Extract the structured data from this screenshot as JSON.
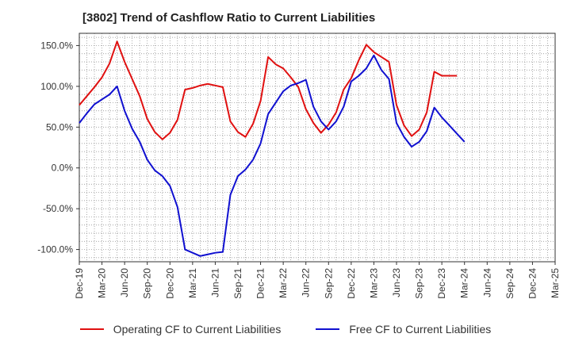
{
  "chart_data": {
    "type": "line",
    "title": "[3802]  Trend of Cashflow Ratio to Current Liabilities",
    "xlabel": "",
    "ylabel": "",
    "ylim": [
      -115,
      165
    ],
    "yticks": [
      150,
      100,
      50,
      0,
      -50,
      -100
    ],
    "ytick_labels": [
      "150.0%",
      "100.0%",
      "50.0%",
      "0.0%",
      "-50.0%",
      "-100.0%"
    ],
    "x_tick_labels": [
      "Dec-19",
      "Mar-20",
      "Jun-20",
      "Sep-20",
      "Dec-20",
      "Mar-21",
      "Jun-21",
      "Sep-21",
      "Dec-21",
      "Mar-22",
      "Jun-22",
      "Sep-22",
      "Dec-22",
      "Mar-23",
      "Jun-23",
      "Sep-23",
      "Dec-23",
      "Mar-24",
      "Jun-24",
      "Sep-24",
      "Dec-24",
      "Mar-25"
    ],
    "grid": true,
    "legend_position": "bottom",
    "series": [
      {
        "name": "Operating CF to Current Liabilities",
        "color": "#e01010",
        "points": [
          [
            0,
            77
          ],
          [
            1,
            88
          ],
          [
            2,
            99
          ],
          [
            3,
            111
          ],
          [
            4,
            128
          ],
          [
            5,
            155
          ],
          [
            6,
            130
          ],
          [
            7,
            109
          ],
          [
            8,
            88
          ],
          [
            9,
            60
          ],
          [
            10,
            44
          ],
          [
            11,
            35
          ],
          [
            12,
            43
          ],
          [
            13,
            59
          ],
          [
            14,
            96
          ],
          [
            15,
            98
          ],
          [
            16,
            101
          ],
          [
            17,
            103
          ],
          [
            18,
            101
          ],
          [
            19,
            99
          ],
          [
            20,
            57
          ],
          [
            21,
            44
          ],
          [
            22,
            38
          ],
          [
            23,
            54
          ],
          [
            24,
            82
          ],
          [
            25,
            136
          ],
          [
            26,
            127
          ],
          [
            27,
            122
          ],
          [
            28,
            111
          ],
          [
            29,
            99
          ],
          [
            30,
            72
          ],
          [
            31,
            55
          ],
          [
            32,
            43
          ],
          [
            33,
            53
          ],
          [
            34,
            68
          ],
          [
            35,
            96
          ],
          [
            36,
            110
          ],
          [
            37,
            132
          ],
          [
            38,
            151
          ],
          [
            39,
            142
          ],
          [
            40,
            136
          ],
          [
            41,
            130
          ],
          [
            42,
            77
          ],
          [
            43,
            52
          ],
          [
            44,
            39
          ],
          [
            45,
            47
          ],
          [
            46,
            68
          ],
          [
            47,
            118
          ],
          [
            48,
            113
          ],
          [
            49,
            113
          ],
          [
            50,
            113
          ]
        ]
      },
      {
        "name": "Free CF to Current Liabilities",
        "color": "#1010d0",
        "points": [
          [
            0,
            55
          ],
          [
            1,
            67
          ],
          [
            2,
            78
          ],
          [
            3,
            84
          ],
          [
            4,
            90
          ],
          [
            5,
            100
          ],
          [
            6,
            70
          ],
          [
            7,
            48
          ],
          [
            8,
            32
          ],
          [
            9,
            10
          ],
          [
            10,
            -3
          ],
          [
            11,
            -10
          ],
          [
            12,
            -22
          ],
          [
            13,
            -48
          ],
          [
            14,
            -100
          ],
          [
            15,
            -104
          ],
          [
            16,
            -108
          ],
          [
            17,
            -106
          ],
          [
            18,
            -104
          ],
          [
            19,
            -103
          ],
          [
            20,
            -33
          ],
          [
            21,
            -10
          ],
          [
            22,
            -2
          ],
          [
            23,
            10
          ],
          [
            24,
            30
          ],
          [
            25,
            66
          ],
          [
            26,
            80
          ],
          [
            27,
            94
          ],
          [
            28,
            101
          ],
          [
            29,
            104
          ],
          [
            30,
            108
          ],
          [
            31,
            75
          ],
          [
            32,
            57
          ],
          [
            33,
            47
          ],
          [
            34,
            57
          ],
          [
            35,
            75
          ],
          [
            36,
            106
          ],
          [
            37,
            113
          ],
          [
            38,
            122
          ],
          [
            39,
            138
          ],
          [
            40,
            120
          ],
          [
            41,
            109
          ],
          [
            42,
            55
          ],
          [
            43,
            38
          ],
          [
            44,
            26
          ],
          [
            45,
            32
          ],
          [
            46,
            45
          ],
          [
            47,
            74
          ],
          [
            48,
            62
          ],
          [
            49,
            52
          ],
          [
            50,
            42
          ],
          [
            51,
            32
          ]
        ]
      }
    ]
  }
}
